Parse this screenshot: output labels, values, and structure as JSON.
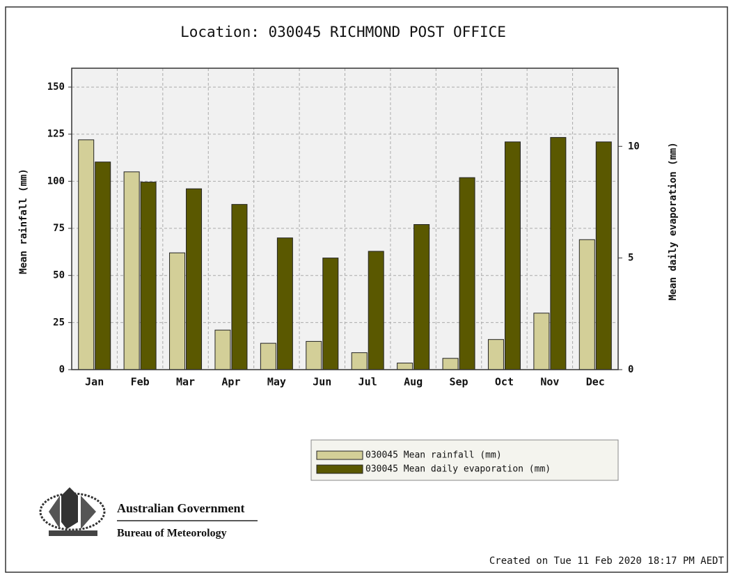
{
  "chart_data": {
    "type": "bar",
    "title": "Location: 030045 RICHMOND POST OFFICE",
    "ylabel": "Mean rainfall (mm)",
    "y2label": "Mean daily evaporation (mm)",
    "categories": [
      "Jan",
      "Feb",
      "Mar",
      "Apr",
      "May",
      "Jun",
      "Jul",
      "Aug",
      "Sep",
      "Oct",
      "Nov",
      "Dec"
    ],
    "series": [
      {
        "name": "030045 Mean rainfall (mm)",
        "color": "#d3cf98",
        "values": [
          122,
          105,
          62,
          21,
          14,
          15,
          9,
          3.5,
          6,
          16,
          30,
          69
        ]
      },
      {
        "name": "030045 Mean daily evaporation (mm)",
        "color": "#5a5800",
        "axis": "y2",
        "values": [
          9.3,
          8.4,
          8.1,
          7.4,
          5.9,
          5.0,
          5.3,
          6.5,
          8.6,
          10.2,
          10.4,
          10.2
        ]
      }
    ],
    "ylim": [
      0,
      160
    ],
    "yticks": [
      0,
      25,
      50,
      75,
      100,
      125,
      150
    ],
    "y2lim": [
      0,
      13.5
    ],
    "y2ticks": [
      0,
      5,
      10
    ],
    "grid": true
  },
  "logo": {
    "line1": "Australian Government",
    "line2": "Bureau of Meteorology"
  },
  "footer": "Created on Tue 11 Feb 2020 18:17 PM AEDT"
}
